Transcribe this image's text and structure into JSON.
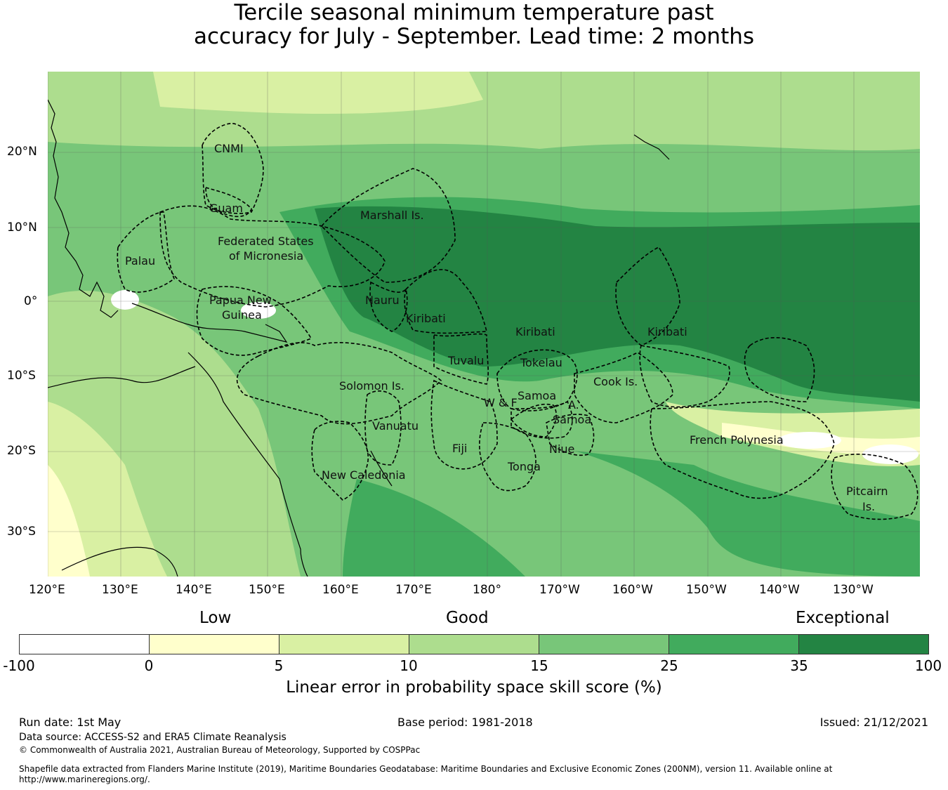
{
  "title": {
    "line1": "Tercile seasonal minimum temperature past",
    "line2": "accuracy for July - September. Lead time: 2 months"
  },
  "map": {
    "lat_labels": [
      "20°N",
      "10°N",
      "0°",
      "10°S",
      "20°S",
      "30°S"
    ],
    "lon_labels": [
      "120°E",
      "130°E",
      "140°E",
      "150°E",
      "160°E",
      "170°E",
      "180°",
      "170°W",
      "160°W",
      "150°W",
      "140°W",
      "130°W"
    ],
    "regions": {
      "cnmi": "CNMI",
      "guam": "Guam",
      "marshall": "Marshall Is.",
      "fsm1": "Federated States",
      "fsm2": "of Micronesia",
      "palau": "Palau",
      "png1": "Papua New",
      "png2": "Guinea",
      "nauru": "Nauru",
      "kiribati_w": "Kiribati",
      "kiribati_c": "Kiribati",
      "kiribati_e": "Kiribati",
      "tuvalu": "Tuvalu",
      "tokelau": "Tokelau",
      "solomon": "Solomon Is.",
      "wf": "W & F",
      "samoa": "Samoa",
      "asamoa1": "A.",
      "asamoa2": "Samoa",
      "cook": "Cook Is.",
      "vanuatu": "Vanuatu",
      "fiji": "Fiji",
      "niue": "Niue",
      "tonga": "Tonga",
      "newcal": "New Caledonia",
      "fp": "French Polynesia",
      "pitcairn1": "Pitcairn",
      "pitcairn2": "Is."
    },
    "colors": {
      "exceptional": "#238443",
      "c25_35": "#41ab5d",
      "c15_25": "#78c679",
      "c10_15": "#addd8e",
      "c5_10": "#d9f0a3",
      "c0_5": "#ffffcc",
      "neg": "#ffffff"
    }
  },
  "legend": {
    "categories": [
      "Low",
      "Good",
      "Exceptional"
    ],
    "colors": [
      "#ffffff",
      "#ffffcc",
      "#d9f0a3",
      "#addd8e",
      "#78c679",
      "#41ab5d",
      "#238443"
    ],
    "ticks": [
      "-100",
      "0",
      "5",
      "10",
      "15",
      "25",
      "35",
      "100"
    ],
    "label": "Linear error in probability space skill score (%)"
  },
  "footer": {
    "run_date": "Run date: 1st May",
    "base_period": "Base period: 1981-2018",
    "issued": "Issued: 21/12/2021",
    "data_source": "Data source: ACCESS-S2 and ERA5 Climate Reanalysis",
    "copyright": "© Commonwealth of Australia 2021, Australian Bureau of Meteorology, Supported by COSPPac",
    "shapefile1": "Shapefile data extracted from Flanders Marine Institute (2019), Maritime Boundaries Geodatabase: Maritime Boundaries and Exclusive Economic Zones (200NM), version 11. Available online at",
    "shapefile2": "http://www.marineregions.org/."
  }
}
